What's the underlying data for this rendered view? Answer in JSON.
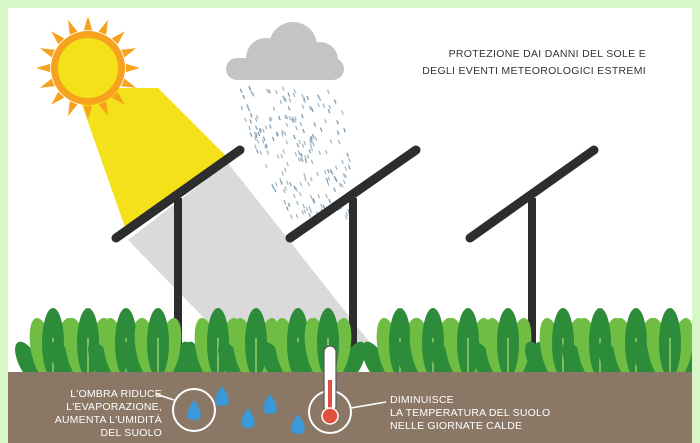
{
  "title": {
    "line1": "PROTEZIONE DAI DANNI DEL SOLE E",
    "line2": "DEGLI EVENTI METEOROLOGICI ESTREMI"
  },
  "captions": {
    "left": [
      "L'OMBRA RIDUCE",
      "L'EVAPORAZIONE,",
      "AUMENTA L'UMIDITÀ",
      "DEL SUOLO"
    ],
    "right": [
      "DIMINUISCE",
      "LA TEMPERATURA DEL SUOLO",
      "NELLE GIORNATE CALDE"
    ]
  },
  "colors": {
    "background": "#d7f7c6",
    "sun": "#f6a21d",
    "sunlight": "#f4e11a",
    "shadow": "#d3d3d3",
    "cloud": "#c4c4c4",
    "panel": "#2d2d2d",
    "plant_dark": "#2d8c3a",
    "plant_light": "#6fbe43",
    "soil": "#8a7766",
    "water_drop": "#3a9ad9",
    "thermometer": "#e0503a"
  },
  "icons": [
    "sun-icon",
    "cloud-icon",
    "rain-icon",
    "solar-panel-icon",
    "plant-icon",
    "water-drop-icon",
    "thermometer-icon"
  ]
}
